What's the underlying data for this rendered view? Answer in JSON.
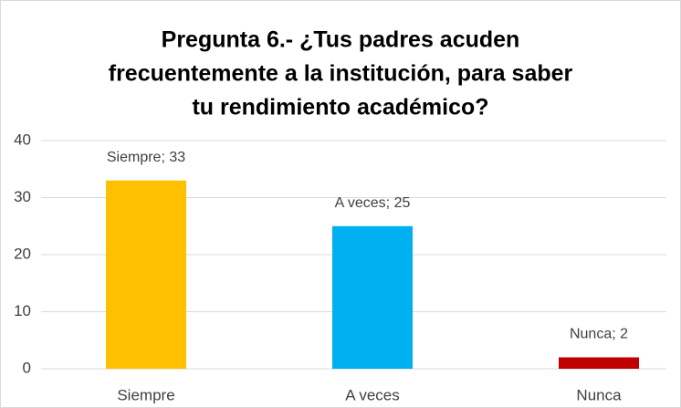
{
  "chart_data": {
    "type": "bar",
    "title": [
      "Pregunta 6.- ¿Tus padres acuden",
      "frecuentemente a la institución, para saber",
      "tu rendimiento académico?"
    ],
    "categories": [
      "Siempre",
      "A veces",
      "Nunca"
    ],
    "values": [
      33,
      25,
      2
    ],
    "value_labels": [
      "Siempre; 33",
      "A veces; 25",
      "Nunca; 2"
    ],
    "colors": [
      "#ffc000",
      "#00b0f0",
      "#c00000"
    ],
    "ylim": [
      0,
      40
    ],
    "yticks": [
      0,
      10,
      20,
      30,
      40
    ],
    "grid": true
  }
}
